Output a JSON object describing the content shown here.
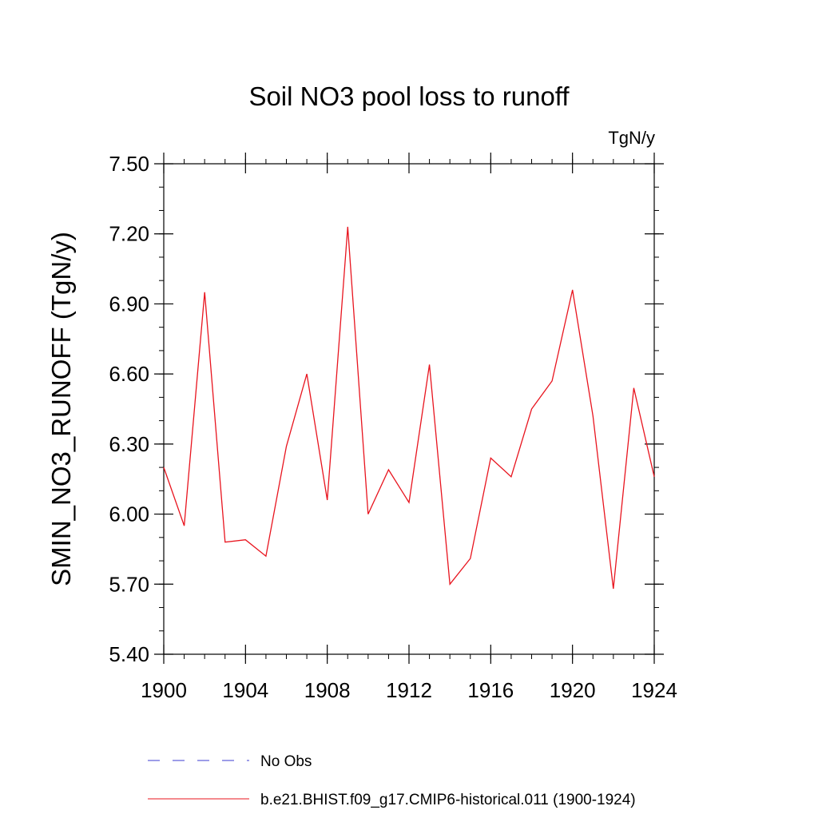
{
  "chart_data": {
    "type": "line",
    "title": "Soil NO3 pool loss to runoff",
    "units": "TgN/y",
    "ylabel": "SMIN_NO3_RUNOFF  (TgN/y)",
    "xlabel": "",
    "xlim": [
      1900,
      1924
    ],
    "ylim": [
      5.4,
      7.5
    ],
    "x_ticks": [
      1900,
      1904,
      1908,
      1912,
      1916,
      1920,
      1924
    ],
    "y_ticks": [
      "5.40",
      "5.70",
      "6.00",
      "6.30",
      "6.60",
      "6.90",
      "7.20",
      "7.50"
    ],
    "x_minor_step": 1,
    "y_minor_step": 0.1,
    "grid": false,
    "legend_position": "bottom",
    "series": [
      {
        "name": "No Obs",
        "color": "#3b3bd0",
        "dash": "dashed",
        "x": [],
        "y": []
      },
      {
        "name": "b.e21.BHIST.f09_g17.CMIP6-historical.011 (1900-1924)",
        "color": "#e8141e",
        "dash": "solid",
        "x": [
          1900,
          1901,
          1902,
          1903,
          1904,
          1905,
          1906,
          1907,
          1908,
          1909,
          1910,
          1911,
          1912,
          1913,
          1914,
          1915,
          1916,
          1917,
          1918,
          1919,
          1920,
          1921,
          1922,
          1923,
          1924
        ],
        "y": [
          6.2,
          5.95,
          6.95,
          5.88,
          5.89,
          5.82,
          6.29,
          6.6,
          6.06,
          7.23,
          6.0,
          6.19,
          6.05,
          6.64,
          5.7,
          5.81,
          6.24,
          6.16,
          6.45,
          6.57,
          6.96,
          6.42,
          5.68,
          6.54,
          6.16
        ]
      }
    ]
  }
}
